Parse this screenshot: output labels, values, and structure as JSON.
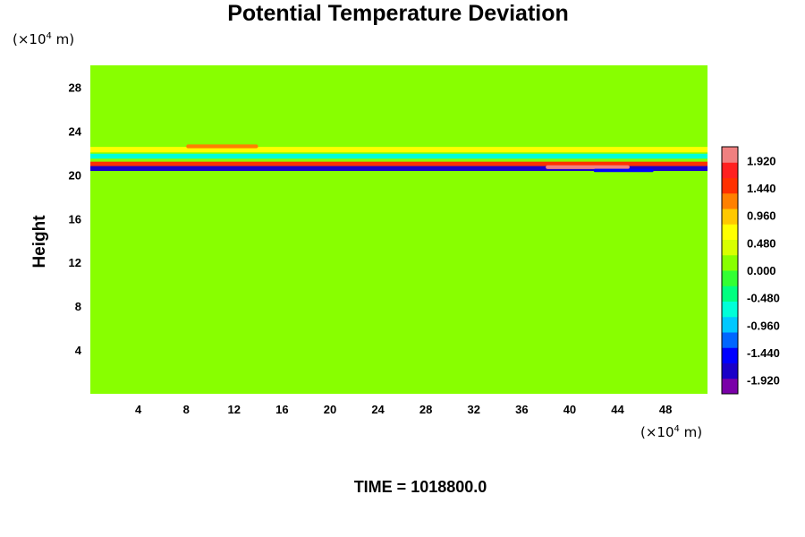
{
  "chart_data": {
    "type": "heatmap",
    "title": "Potential Temperature Deviation",
    "ylabel": "Height",
    "x_unit": {
      "prefix": "(×10",
      "exp": "4",
      "suffix": " m)"
    },
    "y_unit": {
      "prefix": "(×10",
      "exp": "4",
      "suffix": " m)"
    },
    "xlim": [
      0,
      51.5
    ],
    "ylim": [
      0,
      30
    ],
    "x_ticks": [
      4,
      8,
      12,
      16,
      20,
      24,
      28,
      32,
      36,
      40,
      44,
      48
    ],
    "x_tick_labels": [
      "4",
      "8",
      "12",
      "16",
      "20",
      "24",
      "28",
      "32",
      "36",
      "40",
      "44",
      "48"
    ],
    "y_ticks": [
      4,
      8,
      12,
      16,
      20,
      24,
      28
    ],
    "y_tick_labels": [
      "4",
      "8",
      "12",
      "16",
      "20",
      "24",
      "28"
    ],
    "colorbar": {
      "min": -2.16,
      "max": 2.16,
      "label_values": [
        1.92,
        1.44,
        0.96,
        0.48,
        0.0,
        -0.48,
        -0.96,
        -1.44,
        -1.92
      ],
      "labels": [
        "1.920",
        "1.440",
        "0.960",
        "0.480",
        "0.000",
        "-0.480",
        "-0.960",
        "-1.440",
        "-1.920"
      ],
      "color_stops": [
        "#7a00a8",
        "#1a00c8",
        "#0000ff",
        "#0066ff",
        "#00c8ff",
        "#00ffd8",
        "#00ff80",
        "#33ff33",
        "#88ff00",
        "#d8ff00",
        "#ffff00",
        "#ffc800",
        "#ff8000",
        "#ff3000",
        "#ff2020",
        "#f08080"
      ]
    },
    "field": {
      "background_value": 0.05,
      "features": [
        {
          "kind": "band",
          "x": [
            0,
            51.5
          ],
          "y": 20.6,
          "thickness": 0.5,
          "value": -1.85
        },
        {
          "kind": "band",
          "x": [
            0,
            51.5
          ],
          "y": 21.0,
          "thickness": 0.4,
          "value": 1.4
        },
        {
          "kind": "band",
          "x": [
            0,
            51.5
          ],
          "y": 21.7,
          "thickness": 0.45,
          "value": -0.75
        },
        {
          "kind": "band",
          "x": [
            0,
            51.5
          ],
          "y": 22.3,
          "thickness": 0.5,
          "value": 0.8
        },
        {
          "kind": "blob",
          "x": [
            38,
            45
          ],
          "y": 20.7,
          "thickness": 0.35,
          "value": 1.95
        },
        {
          "kind": "blob",
          "x": [
            8,
            14
          ],
          "y": 22.6,
          "thickness": 0.35,
          "value": 1.3
        },
        {
          "kind": "blob",
          "x": [
            42,
            47
          ],
          "y": 20.4,
          "thickness": 0.3,
          "value": -1.6
        }
      ]
    }
  },
  "footer": {
    "time_label": "TIME = 1018800.0"
  }
}
